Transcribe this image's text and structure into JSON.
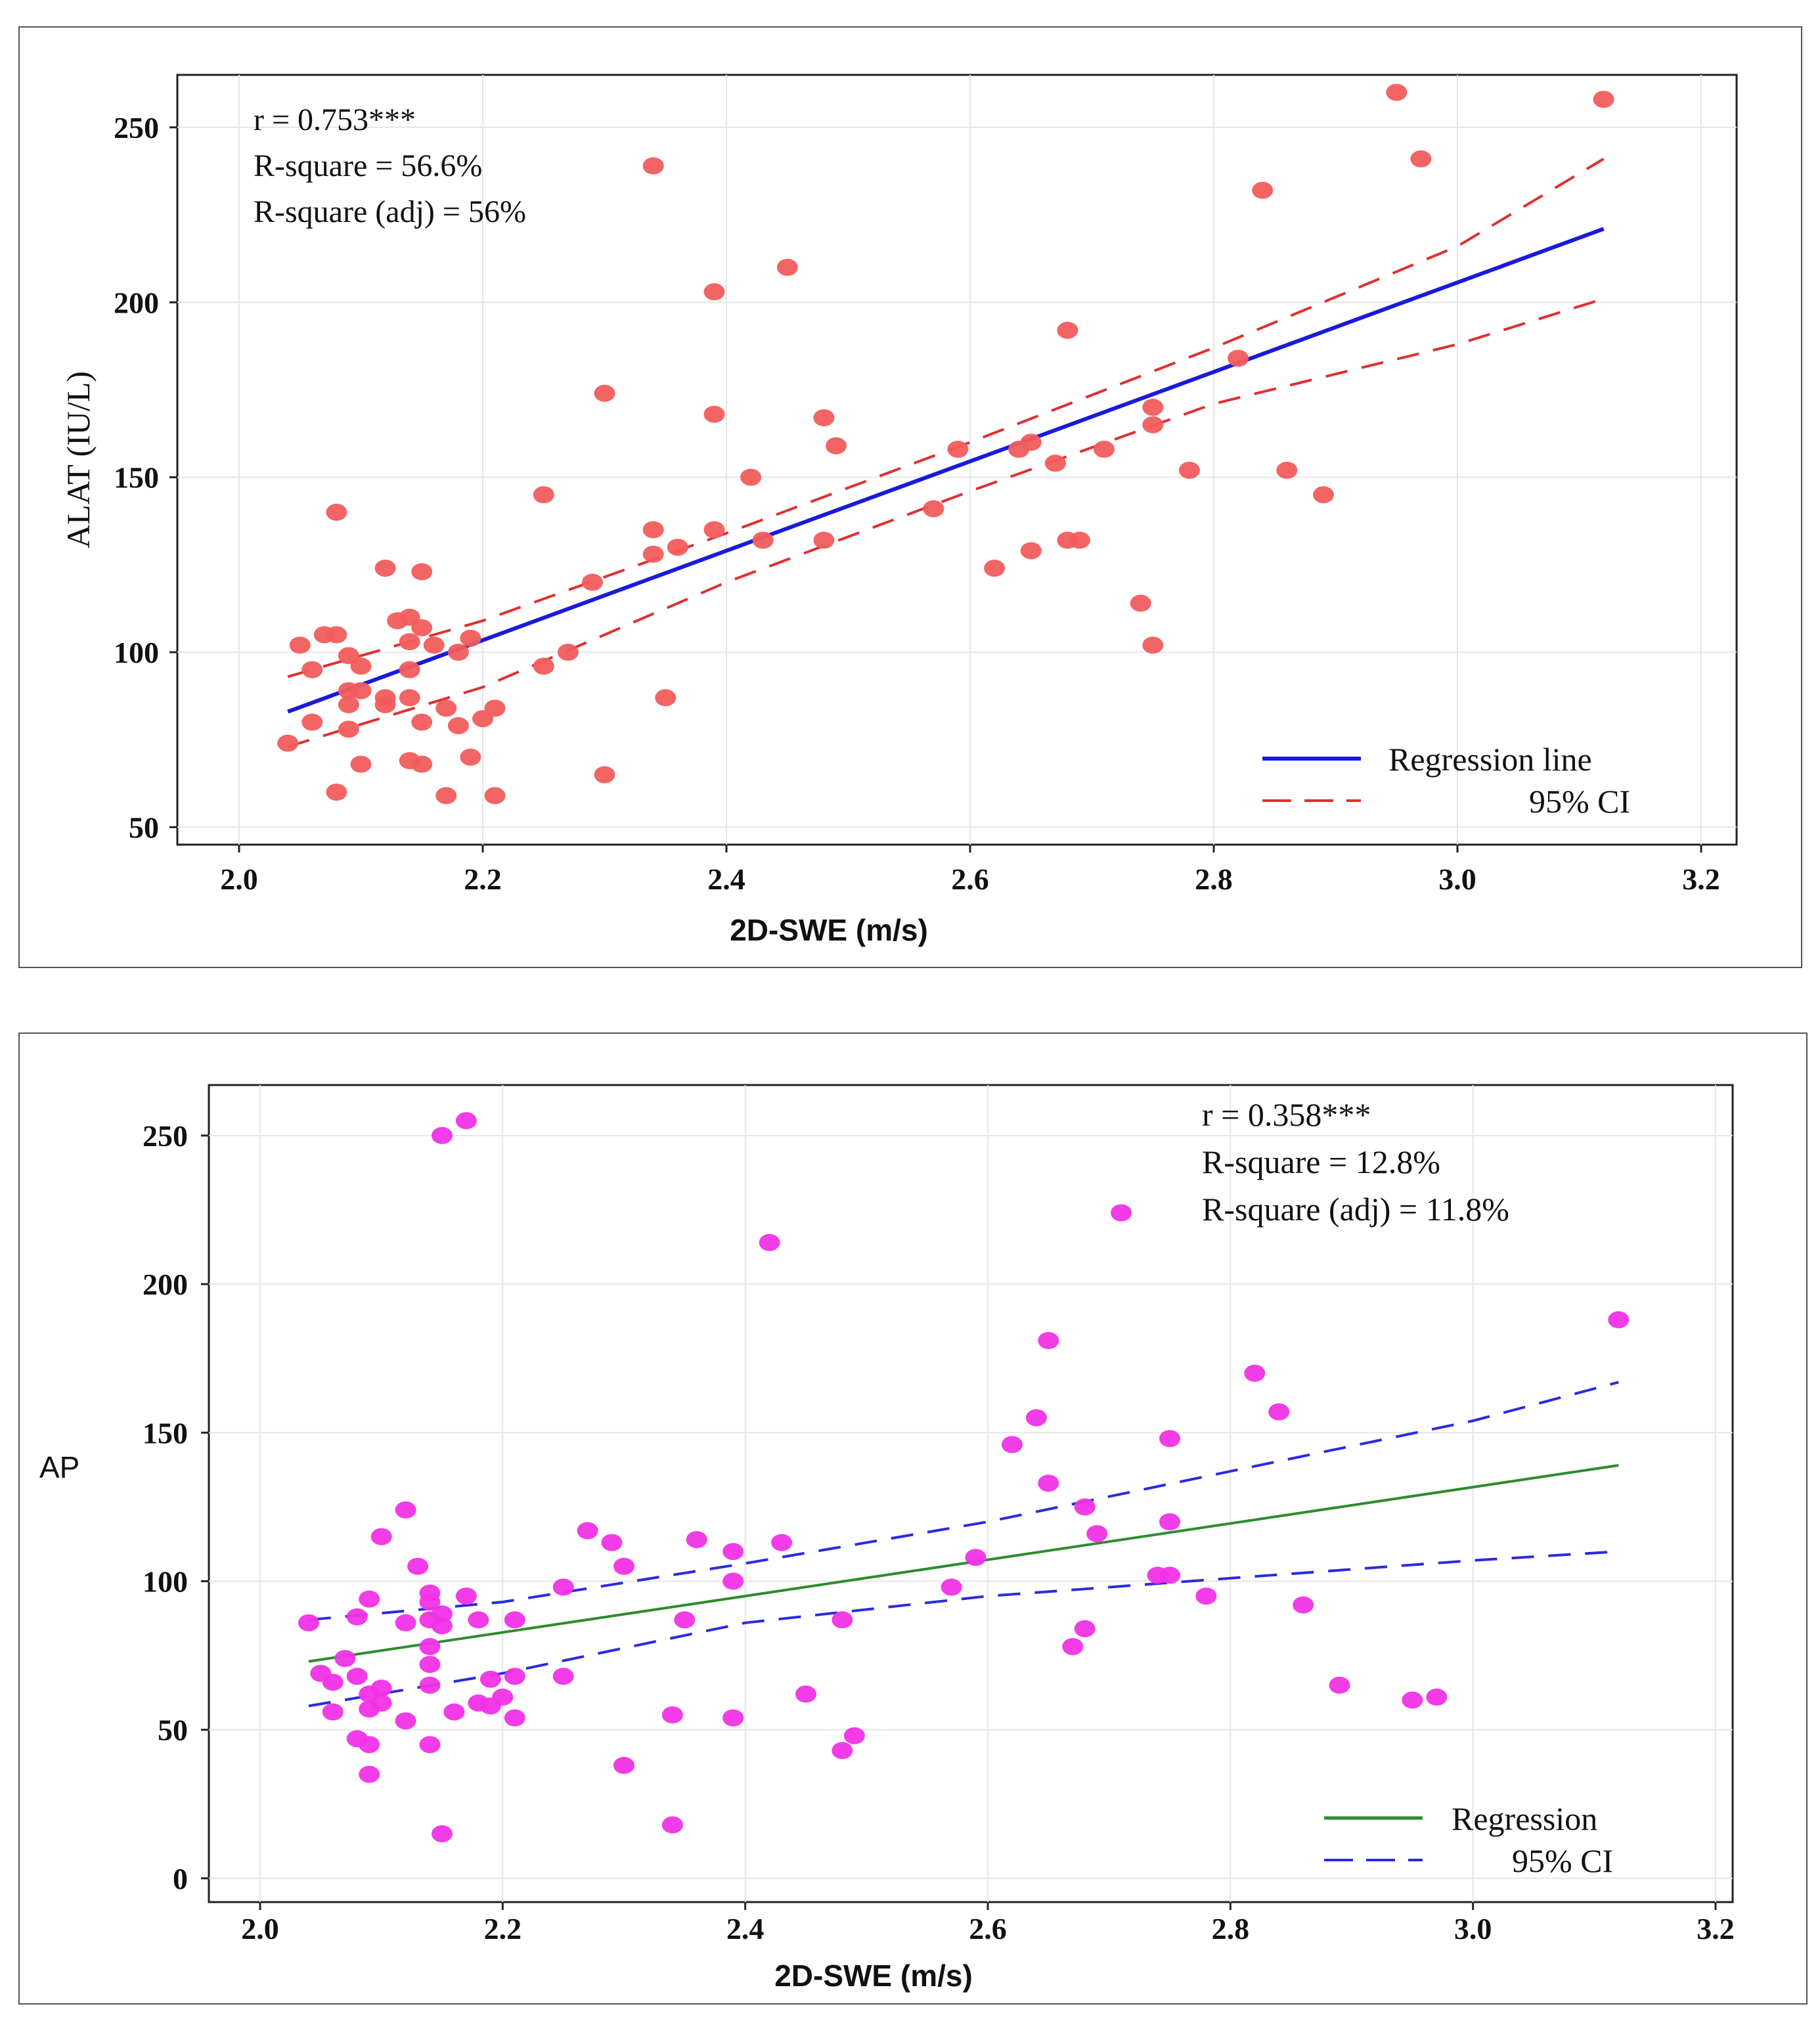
{
  "chart_data": [
    {
      "type": "scatter",
      "title": "",
      "xlabel": "2D-SWE (m/s)",
      "ylabel": "ALAT (IU/L)",
      "xlim": [
        2.0,
        3.2
      ],
      "ylim": [
        50,
        265
      ],
      "xticks": [
        "2.0",
        "2.2",
        "2.4",
        "2.6",
        "2.8",
        "3.0",
        "3.2"
      ],
      "yticks": [
        "50",
        "100",
        "150",
        "200",
        "250"
      ],
      "point_color": "#f25c5c",
      "annotations": [
        "r = 0.753***",
        "R-square = 56.6%",
        "R-square (adj) = 56%"
      ],
      "legend": {
        "position": "bottom-right",
        "regression_label": "Regression line",
        "ci_label": "95% CI",
        "regression_color": "#1a1adb",
        "ci_color": "#e03030"
      },
      "regression": {
        "x": [
          2.04,
          3.12
        ],
        "y": [
          83,
          221
        ]
      },
      "ci_upper": {
        "x": [
          2.04,
          2.2,
          2.4,
          2.6,
          2.8,
          3.0,
          3.12
        ],
        "y": [
          93,
          109,
          134,
          160,
          187,
          216,
          241
        ]
      },
      "ci_lower": {
        "x": [
          2.04,
          2.2,
          2.4,
          2.6,
          2.8,
          3.0,
          3.12
        ],
        "y": [
          73,
          90,
          120,
          146,
          171,
          188,
          201
        ]
      },
      "points": [
        [
          2.04,
          74
        ],
        [
          2.05,
          102
        ],
        [
          2.06,
          95
        ],
        [
          2.06,
          80
        ],
        [
          2.07,
          105
        ],
        [
          2.08,
          140
        ],
        [
          2.08,
          105
        ],
        [
          2.08,
          60
        ],
        [
          2.09,
          99
        ],
        [
          2.09,
          89
        ],
        [
          2.09,
          85
        ],
        [
          2.09,
          78
        ],
        [
          2.1,
          96
        ],
        [
          2.1,
          89
        ],
        [
          2.1,
          68
        ],
        [
          2.12,
          124
        ],
        [
          2.12,
          87
        ],
        [
          2.12,
          85
        ],
        [
          2.13,
          109
        ],
        [
          2.14,
          110
        ],
        [
          2.14,
          103
        ],
        [
          2.14,
          95
        ],
        [
          2.14,
          87
        ],
        [
          2.14,
          69
        ],
        [
          2.15,
          123
        ],
        [
          2.15,
          107
        ],
        [
          2.15,
          80
        ],
        [
          2.15,
          68
        ],
        [
          2.16,
          102
        ],
        [
          2.17,
          84
        ],
        [
          2.17,
          59
        ],
        [
          2.18,
          100
        ],
        [
          2.18,
          79
        ],
        [
          2.19,
          104
        ],
        [
          2.19,
          70
        ],
        [
          2.2,
          81
        ],
        [
          2.21,
          84
        ],
        [
          2.21,
          59
        ],
        [
          2.25,
          145
        ],
        [
          2.25,
          96
        ],
        [
          2.27,
          100
        ],
        [
          2.29,
          120
        ],
        [
          2.3,
          174
        ],
        [
          2.3,
          65
        ],
        [
          2.34,
          239
        ],
        [
          2.34,
          135
        ],
        [
          2.34,
          128
        ],
        [
          2.35,
          87
        ],
        [
          2.36,
          130
        ],
        [
          2.39,
          203
        ],
        [
          2.39,
          168
        ],
        [
          2.39,
          135
        ],
        [
          2.42,
          150
        ],
        [
          2.43,
          132
        ],
        [
          2.45,
          210
        ],
        [
          2.48,
          167
        ],
        [
          2.48,
          132
        ],
        [
          2.49,
          159
        ],
        [
          2.57,
          141
        ],
        [
          2.59,
          158
        ],
        [
          2.62,
          124
        ],
        [
          2.64,
          158
        ],
        [
          2.65,
          160
        ],
        [
          2.65,
          129
        ],
        [
          2.67,
          154
        ],
        [
          2.68,
          192
        ],
        [
          2.68,
          132
        ],
        [
          2.69,
          132
        ],
        [
          2.71,
          158
        ],
        [
          2.74,
          114
        ],
        [
          2.75,
          170
        ],
        [
          2.75,
          165
        ],
        [
          2.75,
          102
        ],
        [
          2.78,
          152
        ],
        [
          2.82,
          184
        ],
        [
          2.84,
          232
        ],
        [
          2.86,
          152
        ],
        [
          2.89,
          145
        ],
        [
          2.95,
          260
        ],
        [
          2.97,
          241
        ],
        [
          3.12,
          258
        ]
      ]
    },
    {
      "type": "scatter",
      "title": "",
      "xlabel": "2D-SWE (m/s)",
      "ylabel": "AP",
      "xlim": [
        2.0,
        3.2
      ],
      "ylim": [
        -5,
        265
      ],
      "xticks": [
        "2.0",
        "2.2",
        "2.4",
        "2.6",
        "2.8",
        "3.0",
        "3.2"
      ],
      "yticks": [
        "0",
        "50",
        "100",
        "150",
        "200",
        "250"
      ],
      "point_color": "#f032e6",
      "annotations": [
        "r = 0.358***",
        "R-square = 12.8%",
        "R-square (adj) = 11.8%"
      ],
      "legend": {
        "position": "bottom-right",
        "regression_label": "Regression",
        "ci_label": "95% CI",
        "regression_color": "#2e8b2e",
        "ci_color": "#2a2ae0"
      },
      "regression": {
        "x": [
          2.04,
          3.12
        ],
        "y": [
          73,
          139
        ]
      },
      "ci_upper": {
        "x": [
          2.04,
          2.2,
          2.4,
          2.6,
          2.8,
          3.0,
          3.12
        ],
        "y": [
          87,
          93,
          106,
          120,
          137,
          154,
          167
        ]
      },
      "ci_lower": {
        "x": [
          2.04,
          2.2,
          2.4,
          2.6,
          2.8,
          3.0,
          3.12
        ],
        "y": [
          58,
          69,
          86,
          95,
          101,
          107,
          110
        ]
      },
      "points": [
        [
          2.04,
          86
        ],
        [
          2.05,
          69
        ],
        [
          2.06,
          66
        ],
        [
          2.06,
          56
        ],
        [
          2.07,
          74
        ],
        [
          2.08,
          88
        ],
        [
          2.08,
          68
        ],
        [
          2.08,
          47
        ],
        [
          2.09,
          94
        ],
        [
          2.09,
          62
        ],
        [
          2.09,
          57
        ],
        [
          2.09,
          45
        ],
        [
          2.09,
          35
        ],
        [
          2.1,
          115
        ],
        [
          2.1,
          64
        ],
        [
          2.1,
          59
        ],
        [
          2.12,
          124
        ],
        [
          2.12,
          86
        ],
        [
          2.12,
          53
        ],
        [
          2.13,
          105
        ],
        [
          2.14,
          96
        ],
        [
          2.14,
          93
        ],
        [
          2.14,
          87
        ],
        [
          2.14,
          78
        ],
        [
          2.14,
          72
        ],
        [
          2.14,
          65
        ],
        [
          2.14,
          45
        ],
        [
          2.15,
          250
        ],
        [
          2.15,
          89
        ],
        [
          2.15,
          85
        ],
        [
          2.15,
          15
        ],
        [
          2.16,
          56
        ],
        [
          2.17,
          255
        ],
        [
          2.17,
          95
        ],
        [
          2.18,
          87
        ],
        [
          2.18,
          59
        ],
        [
          2.19,
          67
        ],
        [
          2.19,
          58
        ],
        [
          2.2,
          61
        ],
        [
          2.21,
          87
        ],
        [
          2.21,
          68
        ],
        [
          2.21,
          54
        ],
        [
          2.25,
          98
        ],
        [
          2.25,
          68
        ],
        [
          2.27,
          117
        ],
        [
          2.29,
          113
        ],
        [
          2.3,
          105
        ],
        [
          2.3,
          38
        ],
        [
          2.34,
          55
        ],
        [
          2.34,
          18
        ],
        [
          2.35,
          87
        ],
        [
          2.36,
          114
        ],
        [
          2.39,
          110
        ],
        [
          2.39,
          100
        ],
        [
          2.39,
          54
        ],
        [
          2.42,
          214
        ],
        [
          2.43,
          113
        ],
        [
          2.45,
          62
        ],
        [
          2.48,
          87
        ],
        [
          2.48,
          43
        ],
        [
          2.49,
          48
        ],
        [
          2.57,
          98
        ],
        [
          2.59,
          108
        ],
        [
          2.62,
          146
        ],
        [
          2.64,
          155
        ],
        [
          2.65,
          181
        ],
        [
          2.65,
          133
        ],
        [
          2.67,
          78
        ],
        [
          2.68,
          125
        ],
        [
          2.68,
          84
        ],
        [
          2.69,
          116
        ],
        [
          2.71,
          224
        ],
        [
          2.74,
          102
        ],
        [
          2.75,
          148
        ],
        [
          2.75,
          120
        ],
        [
          2.75,
          102
        ],
        [
          2.78,
          95
        ],
        [
          2.82,
          170
        ],
        [
          2.84,
          157
        ],
        [
          2.86,
          92
        ],
        [
          2.89,
          65
        ],
        [
          2.95,
          60
        ],
        [
          2.97,
          61
        ],
        [
          3.12,
          188
        ]
      ]
    }
  ]
}
